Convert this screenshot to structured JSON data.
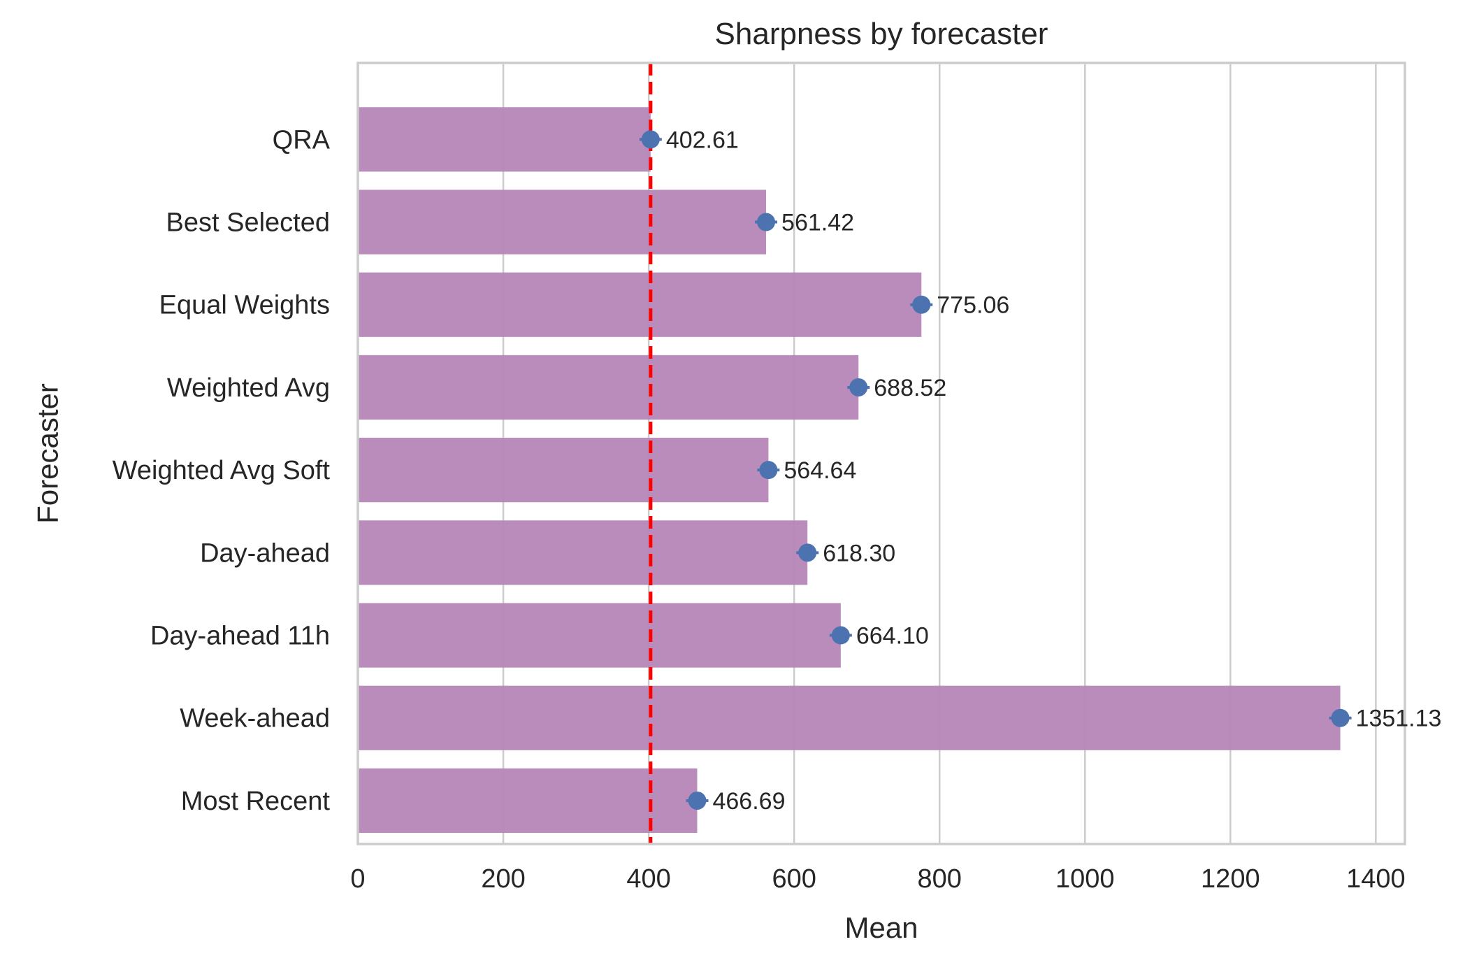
{
  "chart_data": {
    "type": "bar",
    "orientation": "horizontal",
    "title": "Sharpness by forecaster",
    "xlabel": "Mean",
    "ylabel": "Forecaster",
    "categories": [
      "QRA",
      "Best Selected",
      "Equal Weights",
      "Weighted Avg",
      "Weighted Avg Soft",
      "Day-ahead",
      "Day-ahead 11h",
      "Week-ahead",
      "Most Recent"
    ],
    "values": [
      402.61,
      561.42,
      775.06,
      688.52,
      564.64,
      618.3,
      664.1,
      1351.13,
      466.69
    ],
    "value_labels": [
      "402.61",
      "561.42",
      "775.06",
      "688.52",
      "564.64",
      "618.30",
      "664.10",
      "1351.13",
      "466.69"
    ],
    "xlim": [
      0,
      1440
    ],
    "xticks": [
      0,
      200,
      400,
      600,
      800,
      1000,
      1200,
      1400
    ],
    "xtick_labels": [
      "0",
      "200",
      "400",
      "600",
      "800",
      "1000",
      "1200",
      "1400"
    ],
    "reference_line": {
      "x": 402.61,
      "style": "dashed",
      "color": "#ff0000"
    },
    "grid": "vertical",
    "colors": {
      "bar": "#b586b7",
      "point": "#4c72b0",
      "reference": "#ff0000",
      "grid": "#cccccc",
      "frame": "#cccccc"
    }
  }
}
